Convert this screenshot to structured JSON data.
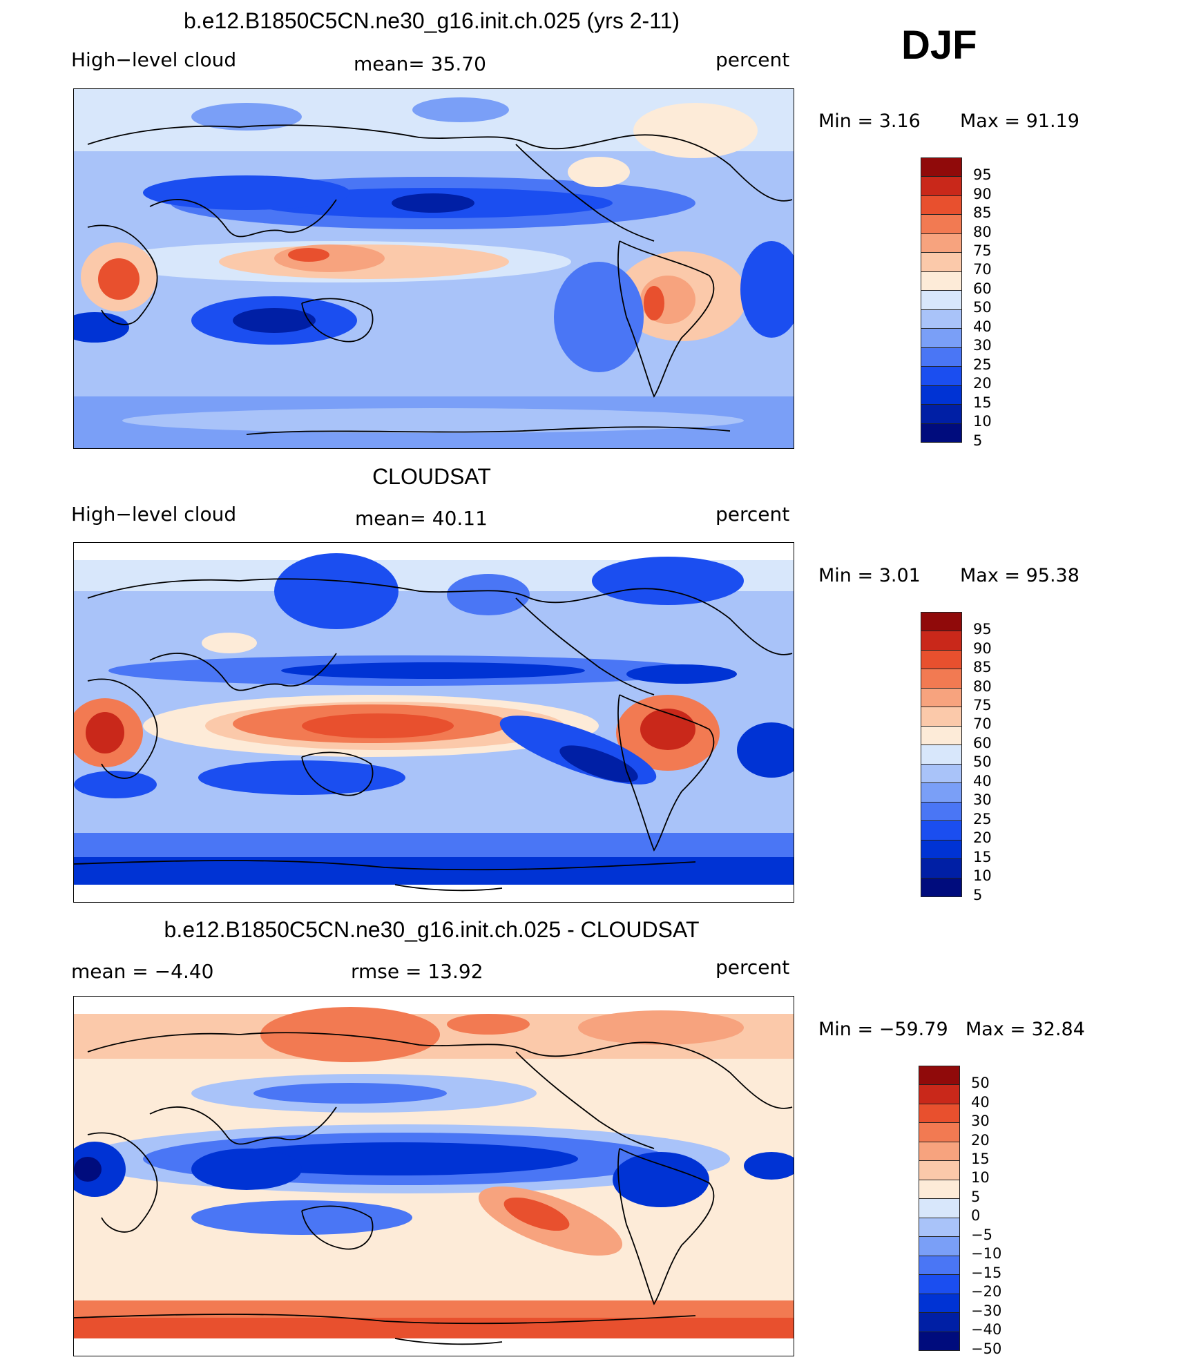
{
  "season": "DJF",
  "scale": {
    "abs_colors": [
      "#000c7d",
      "#001fa5",
      "#0033d4",
      "#1b4ef0",
      "#4a76f5",
      "#7a9ff7",
      "#a9c3f9",
      "#d8e7fb",
      "#fdebd8",
      "#fbc9aa",
      "#f7a37e",
      "#f27a52",
      "#e8502e",
      "#c9281a",
      "#900a0a"
    ],
    "abs_labels": [
      "5",
      "10",
      "15",
      "20",
      "25",
      "30",
      "40",
      "50",
      "60",
      "70",
      "75",
      "80",
      "85",
      "90",
      "95"
    ],
    "diff_colors": [
      "#000c7d",
      "#001fa5",
      "#0033d4",
      "#1b4ef0",
      "#4a76f5",
      "#7a9ff7",
      "#a9c3f9",
      "#d8e7fb",
      "#fdebd8",
      "#fbc9aa",
      "#f7a37e",
      "#f27a52",
      "#e8502e",
      "#c9281a",
      "#900a0a"
    ],
    "diff_labels": [
      "−50",
      "−40",
      "−30",
      "−20",
      "−15",
      "−10",
      "−5",
      "0",
      "5",
      "10",
      "15",
      "20",
      "30",
      "40",
      "50"
    ]
  },
  "panels": [
    {
      "title": "b.e12.B1850C5CN.ne30_g16.init.ch.025 (yrs 2-11)",
      "left": "High−level cloud",
      "center": "mean=   35.70",
      "right": "percent",
      "min_text": "Min  =     3.16",
      "max_text": "Max  =    91.19",
      "kind": "model"
    },
    {
      "title": "CLOUDSAT",
      "left": "High−level cloud",
      "center": "mean=   40.11",
      "right": "percent",
      "min_text": "Min  =     3.01",
      "max_text": "Max  =    95.38",
      "kind": "obs"
    },
    {
      "title": "b.e12.B1850C5CN.ne30_g16.init.ch.025 - CLOUDSAT",
      "left": "mean  =    −4.40",
      "center": "rmse  =    13.92",
      "right": "percent",
      "min_text": "Min  = −59.79",
      "max_text": "Max  =    32.84",
      "kind": "diff"
    }
  ]
}
